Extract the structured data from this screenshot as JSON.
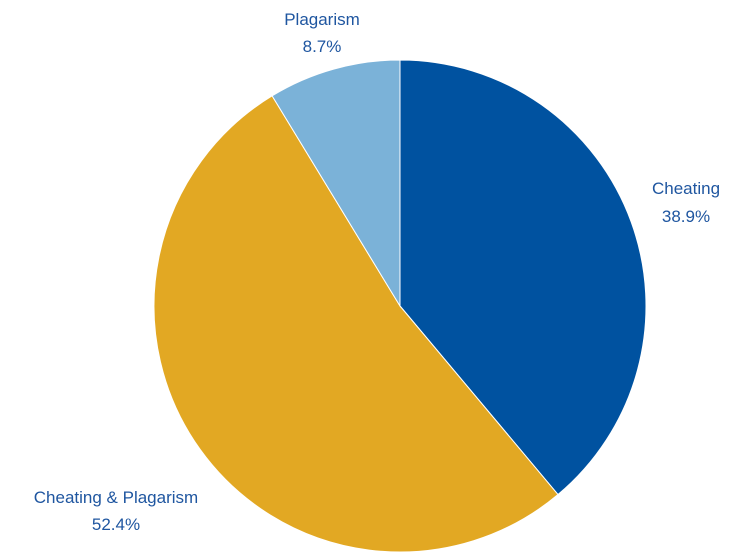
{
  "chart_data": {
    "type": "pie",
    "title": "",
    "start_angle_deg": 0,
    "direction": "clockwise",
    "slices": [
      {
        "label": "Cheating",
        "value": 38.9,
        "value_label": "38.9%",
        "color": "#0052a0"
      },
      {
        "label": "Cheating & Plagarism",
        "value": 52.4,
        "value_label": "52.4%",
        "color": "#e2a823"
      },
      {
        "label": "Plagarism",
        "value": 8.7,
        "value_label": "8.7%",
        "color": "#7bb2d8"
      }
    ],
    "label_color": "#1f56a0",
    "background": "#ffffff"
  }
}
